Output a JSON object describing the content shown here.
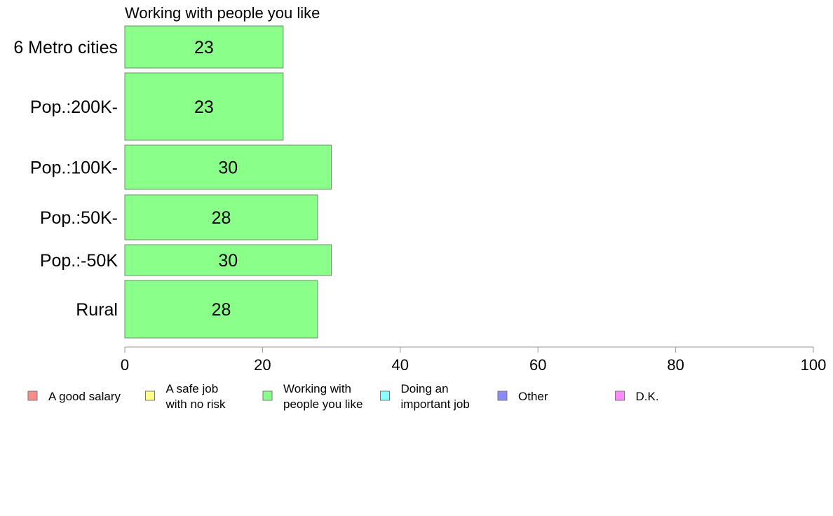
{
  "chart_data": {
    "type": "bar",
    "orientation": "horizontal",
    "title": "Working with people you like",
    "xlabel": "",
    "ylabel": "",
    "categories": [
      "6 Metro cities",
      "Pop.:200K-",
      "Pop.:100K-",
      "Pop.:50K-",
      "Pop.:-50K",
      "Rural"
    ],
    "values": [
      23,
      23,
      30,
      28,
      30,
      28
    ],
    "data_labels": [
      "23",
      "23",
      "30",
      "28",
      "30",
      "28"
    ],
    "bar_color": "#8aff8a",
    "xlim": [
      0,
      100
    ],
    "xticks": [
      0,
      20,
      40,
      60,
      80,
      100
    ],
    "xtick_labels": [
      "0",
      "20",
      "40",
      "60",
      "80",
      "100"
    ],
    "grid": false,
    "legend_position": "bottom",
    "legend": [
      {
        "lines": [
          "A good salary"
        ],
        "color": "#ff8a8a"
      },
      {
        "lines": [
          "A safe job",
          "with no risk"
        ],
        "color": "#ffff8a"
      },
      {
        "lines": [
          "Working with",
          "people you like"
        ],
        "color": "#8aff8a"
      },
      {
        "lines": [
          "Doing an",
          "important job"
        ],
        "color": "#8affff"
      },
      {
        "lines": [
          "Other"
        ],
        "color": "#8a8aff"
      },
      {
        "lines": [
          "D.K."
        ],
        "color": "#ff8aff"
      }
    ]
  }
}
